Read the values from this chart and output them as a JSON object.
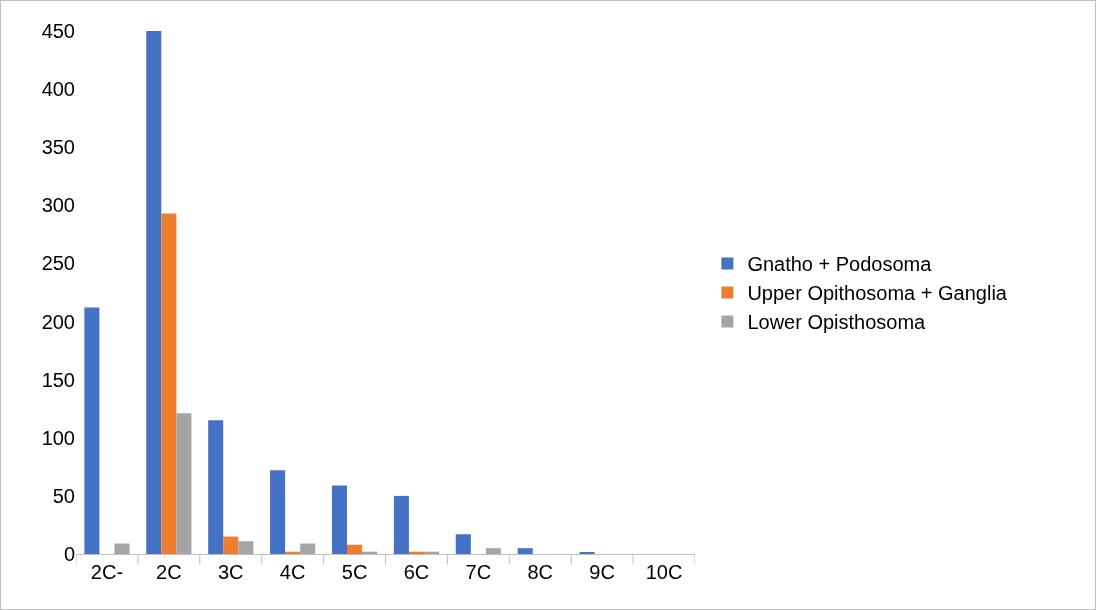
{
  "chart_data": {
    "type": "bar",
    "categories": [
      "2C-",
      "2C",
      "3C",
      "4C",
      "5C",
      "6C",
      "7C",
      "8C",
      "9C",
      "10C"
    ],
    "series": [
      {
        "name": "Gnatho + Podosoma",
        "color": "#4472c4",
        "values": [
          212,
          450,
          115,
          72,
          59,
          50,
          17,
          5,
          1,
          0
        ]
      },
      {
        "name": "Upper Opithosoma + Ganglia",
        "color": "#ed7d31",
        "values": [
          0,
          293,
          15,
          2,
          8,
          2,
          0,
          0,
          0,
          0
        ]
      },
      {
        "name": "Lower Opisthosoma",
        "color": "#a5a5a5",
        "values": [
          9,
          121,
          11,
          9,
          2,
          2,
          5,
          0,
          0,
          0
        ]
      }
    ],
    "ylim": [
      0,
      450
    ],
    "yticks": [
      0,
      50,
      100,
      150,
      200,
      250,
      300,
      350,
      400,
      450
    ],
    "grid": false,
    "legend": "right"
  }
}
